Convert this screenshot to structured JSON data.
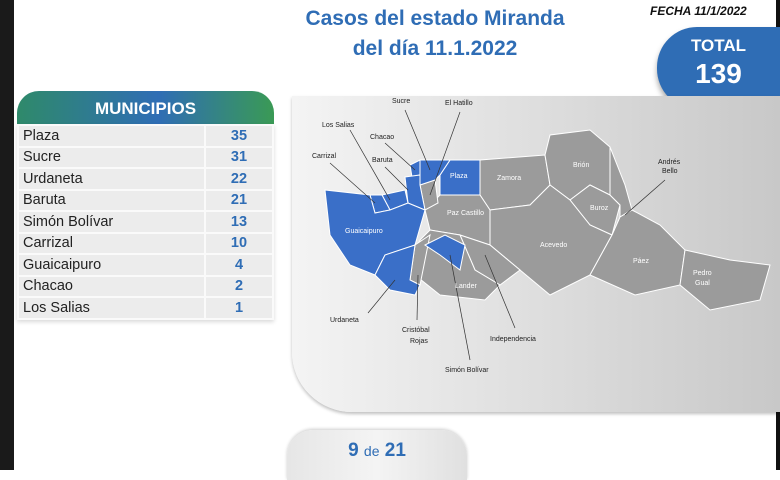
{
  "header": {
    "title_line1": "Casos del estado Miranda",
    "title_line2": "del día 11.1.2022",
    "fecha": "FECHA 11/1/2022"
  },
  "total": {
    "label": "TOTAL",
    "value": "139"
  },
  "municipios": {
    "heading": "MUNICIPIOS",
    "rows": [
      {
        "name": "Plaza",
        "cases": "35"
      },
      {
        "name": "Sucre",
        "cases": "31"
      },
      {
        "name": "Urdaneta",
        "cases": "22"
      },
      {
        "name": "Baruta",
        "cases": "21"
      },
      {
        "name": "Simón Bolívar",
        "cases": "13"
      },
      {
        "name": "Carrizal",
        "cases": "10"
      },
      {
        "name": "Guaicaipuro",
        "cases": "4"
      },
      {
        "name": "Chacao",
        "cases": "2"
      },
      {
        "name": "Los Salias",
        "cases": "1"
      }
    ]
  },
  "map": {
    "colors": {
      "with_cases": "#3a6fc8",
      "without_cases": "#9b9b9b"
    },
    "labels": {
      "sucre": "Sucre",
      "el_hatillo": "El Hatillo",
      "los_salias": "Los Salias",
      "chacao": "Chacao",
      "carrizal": "Carrizal",
      "baruta": "Baruta",
      "plaza": "Plaza",
      "zamora": "Zamora",
      "brion": "Brión",
      "andres_bello_1": "Andrés",
      "andres_bello_2": "Bello",
      "buroz": "Buroz",
      "guaicaipuro": "Guaicaipuro",
      "paz_castillo": "Paz Castillo",
      "acevedo": "Acevedo",
      "paez": "Páez",
      "pedro_gual_1": "Pedro",
      "pedro_gual_2": "Gual",
      "lander": "Lander",
      "urdaneta": "Urdaneta",
      "cristobal_rojas_1": "Cristóbal",
      "cristobal_rojas_2": "Rojas",
      "independencia": "Independencia",
      "simon_bolivar": "Simón Bolívar"
    }
  },
  "pagination": {
    "current": "9",
    "sep": "de",
    "total": "21"
  }
}
